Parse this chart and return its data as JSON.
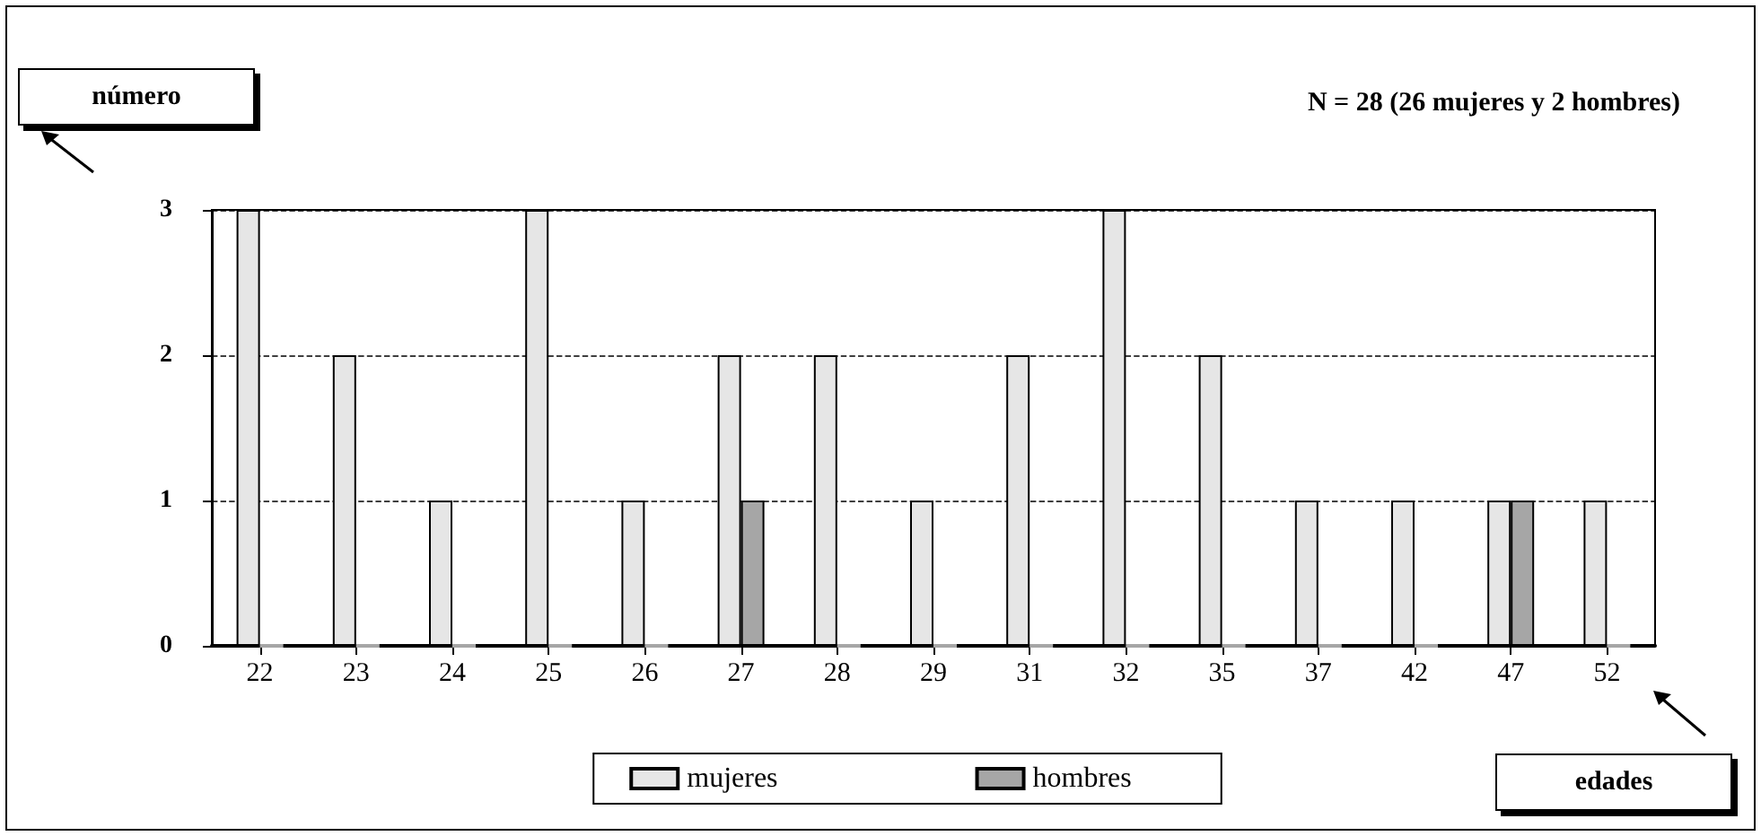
{
  "chart_data": {
    "type": "bar",
    "title": "N = 28 (26 mujeres y 2 hombres)",
    "xlabel": "edades",
    "ylabel": "número",
    "categories": [
      "22",
      "23",
      "24",
      "25",
      "26",
      "27",
      "28",
      "29",
      "31",
      "32",
      "35",
      "37",
      "42",
      "47",
      "52"
    ],
    "series": [
      {
        "name": "mujeres",
        "color": "#e6e6e6",
        "values": [
          3,
          2,
          1,
          3,
          1,
          2,
          2,
          1,
          2,
          3,
          2,
          1,
          1,
          1,
          1
        ]
      },
      {
        "name": "hombres",
        "color": "#a6a6a6",
        "values": [
          0,
          0,
          0,
          0,
          0,
          1,
          0,
          0,
          0,
          0,
          0,
          0,
          0,
          1,
          0
        ]
      }
    ],
    "ylim": [
      0,
      3
    ],
    "yticks": [
      0,
      1,
      2,
      3
    ],
    "grid": "y",
    "line_style": "dashed",
    "legend": "bottom"
  }
}
